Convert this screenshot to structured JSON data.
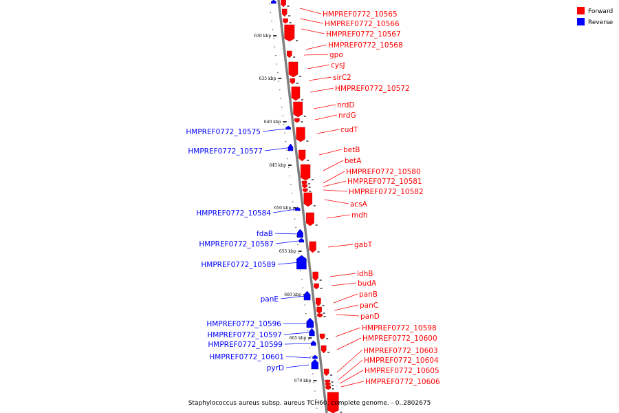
{
  "caption": "Staphylococcus aureus subsp. aureus TCH60, complete genome. - 0..2802675",
  "legend": [
    {
      "label": "Forward",
      "color": "#ff0000"
    },
    {
      "label": "Reverse",
      "color": "#0000ff"
    }
  ],
  "colors": {
    "forward": "#ff0000",
    "reverse": "#0000ff",
    "backbone": "#7f7f7f"
  },
  "kbp_ticks": [
    "630 kbp",
    "635 kbp",
    "640 kbp",
    "645 kbp",
    "650 kbp",
    "655 kbp",
    "660 kbp",
    "665 kbp",
    "670 kbp"
  ],
  "forward_genes": [
    "HMPREF0772_10565",
    "HMPREF0772_10566",
    "HMPREF0772_10567",
    "HMPREF0772_10568",
    "gpo",
    "cysJ",
    "sirC2",
    "HMPREF0772_10572",
    "nrdD",
    "nrdG",
    "cudT",
    "betB",
    "betA",
    "HMPREF0772_10580",
    "HMPREF0772_10581",
    "HMPREF0772_10582",
    "acsA",
    "mdh",
    "gabT",
    "ldhB",
    "budA",
    "panB",
    "panC",
    "panD",
    "HMPREF0772_10598",
    "HMPREF0772_10600",
    "HMPREF0772_10603",
    "HMPREF0772_10604",
    "HMPREF0772_10605",
    "HMPREF0772_10606"
  ],
  "reverse_genes": [
    "HMPREF0772_10575",
    "HMPREF0772_10577",
    "HMPREF0772_10584",
    "fdaB",
    "HMPREF0772_10587",
    "HMPREF0772_10589",
    "panE",
    "HMPREF0772_10596",
    "HMPREF0772_10597",
    "HMPREF0772_10599",
    "HMPREF0772_10601",
    "pyrD"
  ]
}
